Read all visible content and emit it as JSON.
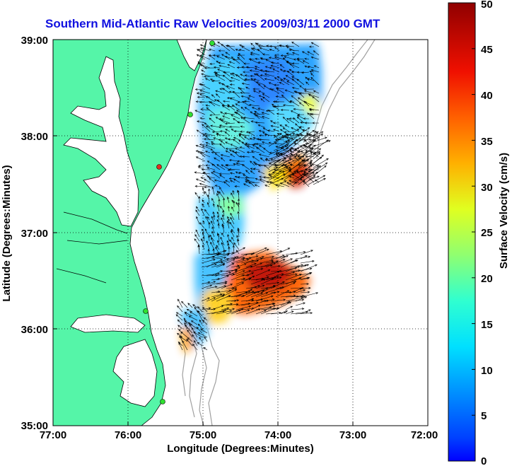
{
  "title": "Southern Mid-Atlantic Raw Velocities 2009/03/11 2000 GMT",
  "xlabel": "Longitude (Degrees:Minutes)",
  "ylabel": "Latitude (Degrees:Minutes)",
  "colorbar_label": "Surface Velocity (cm/s)",
  "x_ticks": [
    "77:00",
    "76:00",
    "75:00",
    "74:00",
    "73:00",
    "72:00"
  ],
  "y_ticks": [
    "39:00",
    "38:00",
    "37:00",
    "36:00",
    "35:00"
  ],
  "cbar_ticks": [
    "50",
    "45",
    "40",
    "35",
    "30",
    "25",
    "20",
    "15",
    "10",
    "5",
    "0"
  ],
  "colors": {
    "land": "#55f5a8",
    "title": "#1010e0",
    "bathymetry": "#a0a0a0",
    "station_active": "#30e030",
    "station_inactive": "#e03020"
  },
  "chart_data": {
    "type": "heatmap",
    "subtype": "surface current velocity map",
    "xlim": [
      -77.0,
      -72.0
    ],
    "ylim": [
      35.0,
      39.0
    ],
    "colorbar_range": [
      0,
      50
    ],
    "units": "cm/s",
    "colormap": "jet",
    "grid": true,
    "stations": [
      {
        "lon": -74.85,
        "lat": 38.97,
        "status": "active"
      },
      {
        "lon": -75.17,
        "lat": 38.22,
        "status": "active"
      },
      {
        "lon": -75.45,
        "lat": 37.67,
        "status": "inactive"
      },
      {
        "lon": -75.7,
        "lat": 36.2,
        "status": "active"
      },
      {
        "lon": -75.5,
        "lat": 35.25,
        "status": "active"
      }
    ]
  }
}
